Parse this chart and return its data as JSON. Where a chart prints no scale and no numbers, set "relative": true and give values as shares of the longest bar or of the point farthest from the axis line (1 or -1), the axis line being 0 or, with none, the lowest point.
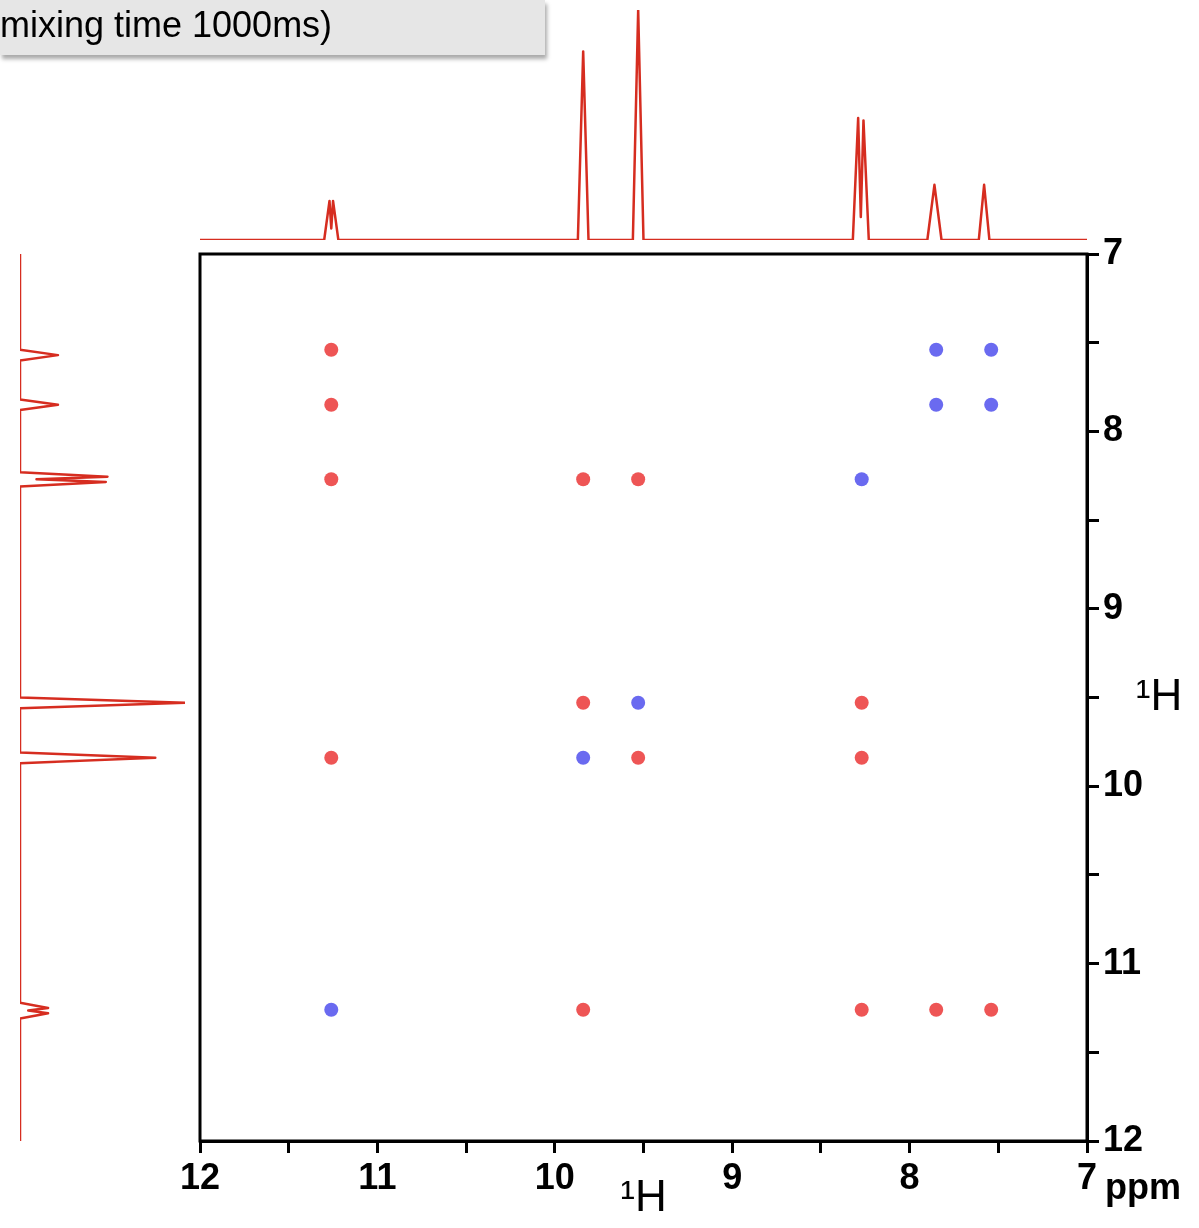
{
  "chart_data": [
    {
      "type": "line",
      "relative": true,
      "tick_labels": false,
      "xlim": [
        12,
        7
      ],
      "x": [
        12,
        11.3,
        11.27,
        11.26,
        11.25,
        11.22,
        9.87,
        9.84,
        9.81,
        9.56,
        9.53,
        9.5,
        8.32,
        8.29,
        8.275,
        8.26,
        8.23,
        7.9,
        7.86,
        7.82,
        7.61,
        7.58,
        7.55,
        7
      ],
      "series": [
        {
          "color": "#d62d20",
          "values": [
            0,
            0,
            0.17,
            0.05,
            0.17,
            0,
            0,
            0.82,
            0,
            0,
            1,
            0,
            0,
            0.53,
            0.1,
            0.52,
            0,
            0,
            0.24,
            0,
            0,
            0.24,
            0,
            0
          ]
        }
      ]
    },
    {
      "type": "line",
      "relative": true,
      "orientation": "horizontal",
      "tick_labels": false,
      "ylim": [
        12,
        7
      ],
      "x": [
        7,
        7.54,
        7.57,
        7.6,
        7.82,
        7.85,
        7.88,
        8.23,
        8.255,
        8.27,
        8.285,
        8.31,
        9.5,
        9.53,
        9.56,
        9.81,
        9.84,
        9.87,
        11.22,
        11.25,
        11.265,
        11.28,
        11.31,
        12
      ],
      "series": [
        {
          "color": "#d62d20",
          "values": [
            0,
            0,
            0.23,
            0,
            0,
            0.23,
            0,
            0,
            0.53,
            0.1,
            0.52,
            0,
            0,
            1,
            0,
            0,
            0.82,
            0,
            0,
            0.17,
            0.05,
            0.17,
            0,
            0
          ]
        }
      ]
    },
    {
      "type": "scatter",
      "title": "mixing time 1000ms)",
      "xlabel": "¹H",
      "ylabel": "¹H",
      "annotations": [
        "ppm"
      ],
      "marker": "circle",
      "xlim": [
        12,
        7
      ],
      "ylim": [
        12,
        7
      ],
      "xticks": [
        12,
        {
          "value": 11.5,
          "label": null
        },
        11,
        {
          "value": 10.5,
          "label": null
        },
        10,
        {
          "value": 9.5,
          "label": null
        },
        9,
        {
          "value": 8.5,
          "label": null
        },
        8,
        {
          "value": 7.5,
          "label": null
        },
        7
      ],
      "yticks": [
        7,
        {
          "value": 7.5,
          "label": null
        },
        8,
        {
          "value": 8.5,
          "label": null
        },
        9,
        {
          "value": 9.5,
          "label": null
        },
        10,
        {
          "value": 10.5,
          "label": null
        },
        11,
        {
          "value": 11.5,
          "label": null
        },
        12
      ],
      "series": [
        {
          "color": "#ee5555",
          "x": [
            11.26,
            11.26,
            11.26,
            9.84,
            9.53,
            9.84,
            8.27,
            11.26,
            9.53,
            8.27,
            9.84,
            8.27,
            7.85,
            7.54
          ],
          "values": [
            7.54,
            7.85,
            8.27,
            8.27,
            8.27,
            9.53,
            9.53,
            9.84,
            9.84,
            9.84,
            11.26,
            11.26,
            11.26,
            11.26
          ]
        },
        {
          "color": "#6a6af0",
          "x": [
            7.85,
            7.54,
            7.85,
            7.54,
            8.27,
            9.53,
            9.84,
            11.26
          ],
          "values": [
            7.54,
            7.54,
            7.85,
            7.85,
            8.27,
            9.53,
            9.84,
            11.26
          ]
        }
      ]
    }
  ]
}
